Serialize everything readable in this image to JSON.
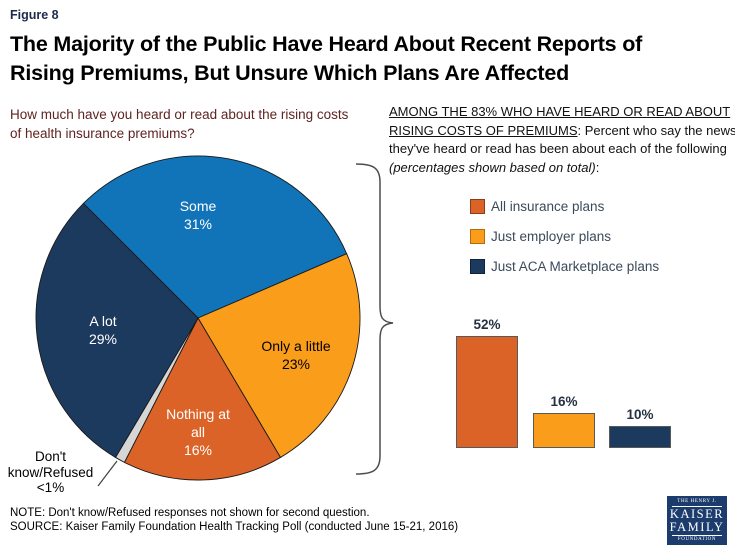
{
  "figure_label": "Figure 8",
  "title_lines": [
    "The Majority of the Public Have Heard About Recent Reports of",
    "Rising Premiums, But Unsure Which Plans Are Affected"
  ],
  "pie_question_lines": [
    "How much have you heard or read about the rising costs",
    "of health insurance premiums?"
  ],
  "right_panel": {
    "heading_underlined": "AMONG THE 83% WHO HAVE HEARD OR READ ABOUT RISING COSTS OF PREMIUMS",
    "heading_rest": ": Percent who say the news they've heard or read has been about each of the following ",
    "heading_italic": "(percentages shown based on total)",
    "heading_suffix": ":"
  },
  "legend": [
    {
      "label": "All insurance plans",
      "color": "#DC6327",
      "border": "#8C3D18"
    },
    {
      "label": "Just employer plans",
      "color": "#FA9D1B",
      "border": "#B36D0E"
    },
    {
      "label": "Just ACA Marketplace plans",
      "color": "#1C3A5E",
      "border": "#0F2240"
    }
  ],
  "chart_data": [
    {
      "type": "pie",
      "title": "How much have you heard or read about the rising costs of health insurance premiums?",
      "start_angle_deg": -45,
      "slices": [
        {
          "label": "Some",
          "value": 31,
          "value_display": "31%",
          "draw_span": 31,
          "color": "#1274B8",
          "label_color": "#FFFFFF"
        },
        {
          "label": "Only a little",
          "value": 23,
          "value_display": "23%",
          "draw_span": 23,
          "color": "#FA9D1B",
          "label_color": "#000000"
        },
        {
          "label": "Nothing at all",
          "value": 16,
          "value_display": "16%",
          "draw_span": 16,
          "color": "#DC6327",
          "label_color": "#FFFFFF"
        },
        {
          "label": "Don't know/Refused",
          "value": 1,
          "value_display": "<1%",
          "draw_span": 1,
          "color": "#D6D6D6",
          "label_color": "#000000"
        },
        {
          "label": "A lot",
          "value": 29,
          "value_display": "29%",
          "draw_span": 29,
          "color": "#1C3A5E",
          "label_color": "#FFFFFF"
        }
      ]
    },
    {
      "type": "bar",
      "title": "AMONG THE 83% WHO HAVE HEARD OR READ ABOUT RISING COSTS OF PREMIUMS: Percent who say the news they've heard or read has been about each of the following (percentages shown based on total)",
      "categories": [
        "All insurance plans",
        "Just employer plans",
        "Just ACA Marketplace plans"
      ],
      "values": [
        52,
        16,
        10
      ],
      "value_labels": [
        "52%",
        "16%",
        "10%"
      ],
      "colors": [
        "#DC6327",
        "#FA9D1B",
        "#1C3A5E"
      ],
      "ylim": [
        0,
        60
      ],
      "grid": "off",
      "axis_labels": "none",
      "legend_position": "above"
    }
  ],
  "note": "NOTE: Don't know/Refused responses not shown for second question.",
  "source": "SOURCE: Kaiser Family Foundation Health Tracking Poll (conducted June 15-21, 2016)",
  "logo": {
    "top": "THE HENRY J.",
    "line1": "KAISER",
    "line2": "FAMILY",
    "bottom": "FOUNDATION"
  }
}
